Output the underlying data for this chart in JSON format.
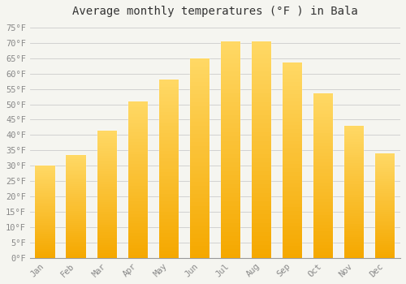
{
  "title": "Average monthly temperatures (°F ) in Bala",
  "months": [
    "Jan",
    "Feb",
    "Mar",
    "Apr",
    "May",
    "Jun",
    "Jul",
    "Aug",
    "Sep",
    "Oct",
    "Nov",
    "Dec"
  ],
  "values": [
    30,
    33.5,
    41.5,
    51,
    58,
    65,
    70.5,
    70.5,
    63.5,
    53.5,
    43,
    34
  ],
  "bar_color_bottom": "#F5A800",
  "bar_color_top": "#FFD966",
  "background_color": "#F5F5F0",
  "grid_color": "#CCCCCC",
  "ylim": [
    0,
    77
  ],
  "yticks": [
    0,
    5,
    10,
    15,
    20,
    25,
    30,
    35,
    40,
    45,
    50,
    55,
    60,
    65,
    70,
    75
  ],
  "tick_label_color": "#888888",
  "title_color": "#333333",
  "title_fontsize": 10,
  "tick_fontsize": 7.5,
  "font_family": "monospace",
  "bar_width": 0.65
}
